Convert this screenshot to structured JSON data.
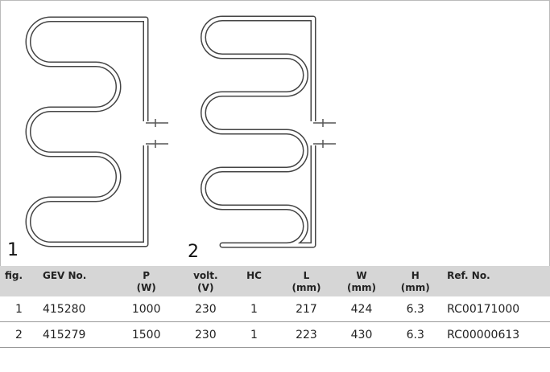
{
  "figures": [
    {
      "label": "1"
    },
    {
      "label": "2"
    }
  ],
  "table": {
    "header": [
      {
        "label": "fig."
      },
      {
        "label": "GEV No."
      },
      {
        "label": "P",
        "unit": "(W)"
      },
      {
        "label": "volt.",
        "unit": "(V)"
      },
      {
        "label": "HC"
      },
      {
        "label": "L",
        "unit": "(mm)"
      },
      {
        "label": "W",
        "unit": "(mm)"
      },
      {
        "label": "H",
        "unit": "(mm)"
      },
      {
        "label": "Ref. No."
      }
    ],
    "rows": [
      [
        "1",
        "415280",
        "1000",
        "230",
        "1",
        "217",
        "424",
        "6.3",
        "RC00171000"
      ],
      [
        "2",
        "415279",
        "1500",
        "230",
        "1",
        "223",
        "430",
        "6.3",
        "RC00000613"
      ]
    ]
  }
}
